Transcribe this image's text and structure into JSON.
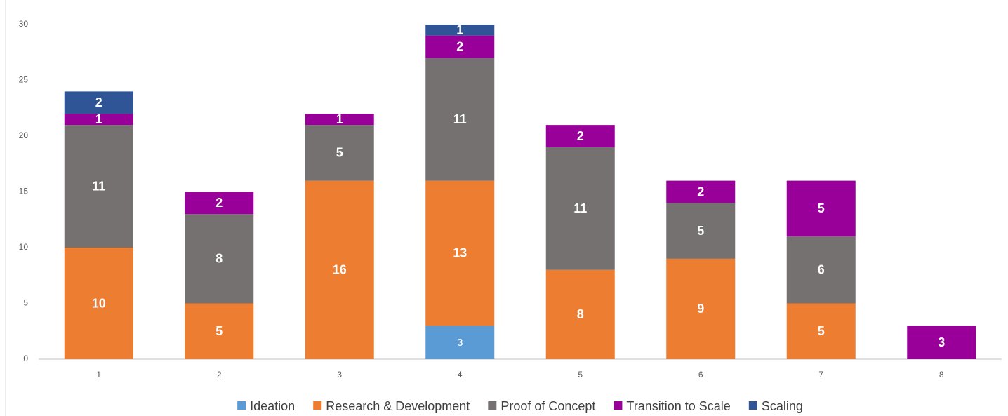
{
  "chart_data": {
    "type": "stacked_bar",
    "categories": [
      "1",
      "2",
      "3",
      "4",
      "5",
      "6",
      "7",
      "8"
    ],
    "series": [
      {
        "name": "Ideation",
        "color": "#5b9bd5",
        "values": [
          null,
          null,
          null,
          3,
          null,
          null,
          null,
          null
        ]
      },
      {
        "name": "Research & Development",
        "color": "#ed7d31",
        "values": [
          10,
          5,
          16,
          13,
          8,
          9,
          5,
          null
        ]
      },
      {
        "name": "Proof of Concept",
        "color": "#767171",
        "values": [
          11,
          8,
          5,
          11,
          11,
          5,
          6,
          null
        ]
      },
      {
        "name": "Transition to Scale",
        "color": "#990099",
        "values": [
          1,
          2,
          1,
          2,
          2,
          2,
          5,
          3
        ]
      },
      {
        "name": "Scaling",
        "color": "#2f5597",
        "values": [
          2,
          null,
          null,
          1,
          null,
          null,
          null,
          null
        ]
      }
    ],
    "ylim": [
      0,
      30
    ],
    "yticks": [
      0,
      5,
      10,
      15,
      20,
      25,
      30
    ],
    "grid": false,
    "legend": "bottom"
  }
}
